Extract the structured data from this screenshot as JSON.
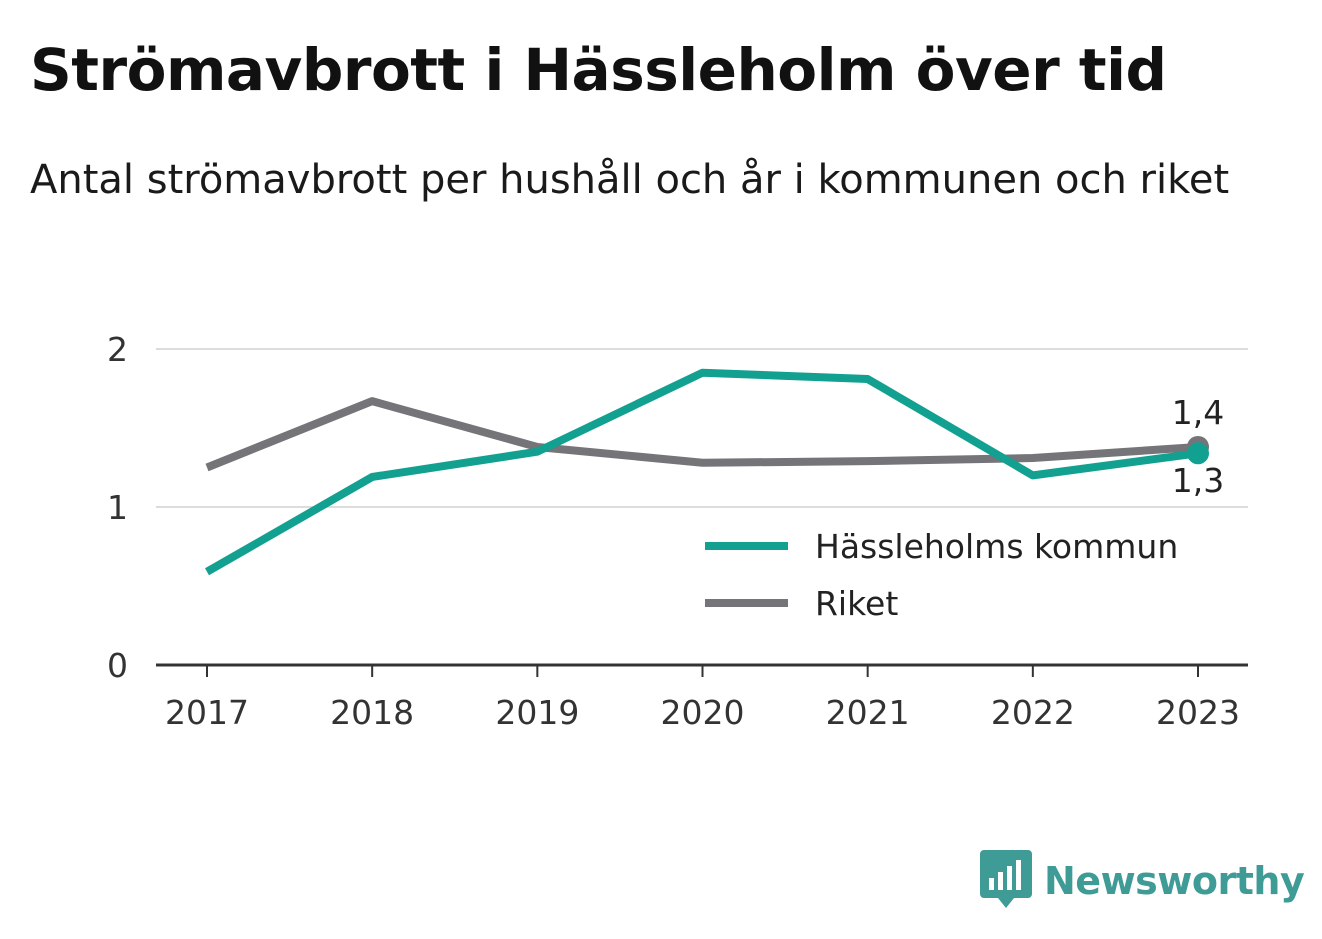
{
  "header": {
    "title": "Strömavbrott i Hässleholm över tid",
    "subtitle": "Antal strömavbrott per hushåll och år i kommunen och riket"
  },
  "brand": {
    "name": "Newsworthy",
    "icon": "bar-chart-logo-icon",
    "color": "#3f9b95"
  },
  "chart_data": {
    "type": "line",
    "title": "Strömavbrott i Hässleholm över tid",
    "subtitle": "Antal strömavbrott per hushåll och år i kommunen och riket",
    "xlabel": "",
    "ylabel": "",
    "x": [
      "2017",
      "2018",
      "2019",
      "2020",
      "2021",
      "2022",
      "2023"
    ],
    "ylim": [
      0,
      2
    ],
    "yticks": [
      0,
      1,
      2
    ],
    "grid": true,
    "legend_position": "bottom-right",
    "series": [
      {
        "name": "Hässleholms kommun",
        "color": "#12a090",
        "values": [
          0.59,
          1.19,
          1.35,
          1.85,
          1.81,
          1.2,
          1.34
        ],
        "end_label": "1,3"
      },
      {
        "name": "Riket",
        "color": "#747479",
        "values": [
          1.25,
          1.67,
          1.38,
          1.28,
          1.29,
          1.31,
          1.38
        ],
        "end_label": "1,4"
      }
    ]
  }
}
